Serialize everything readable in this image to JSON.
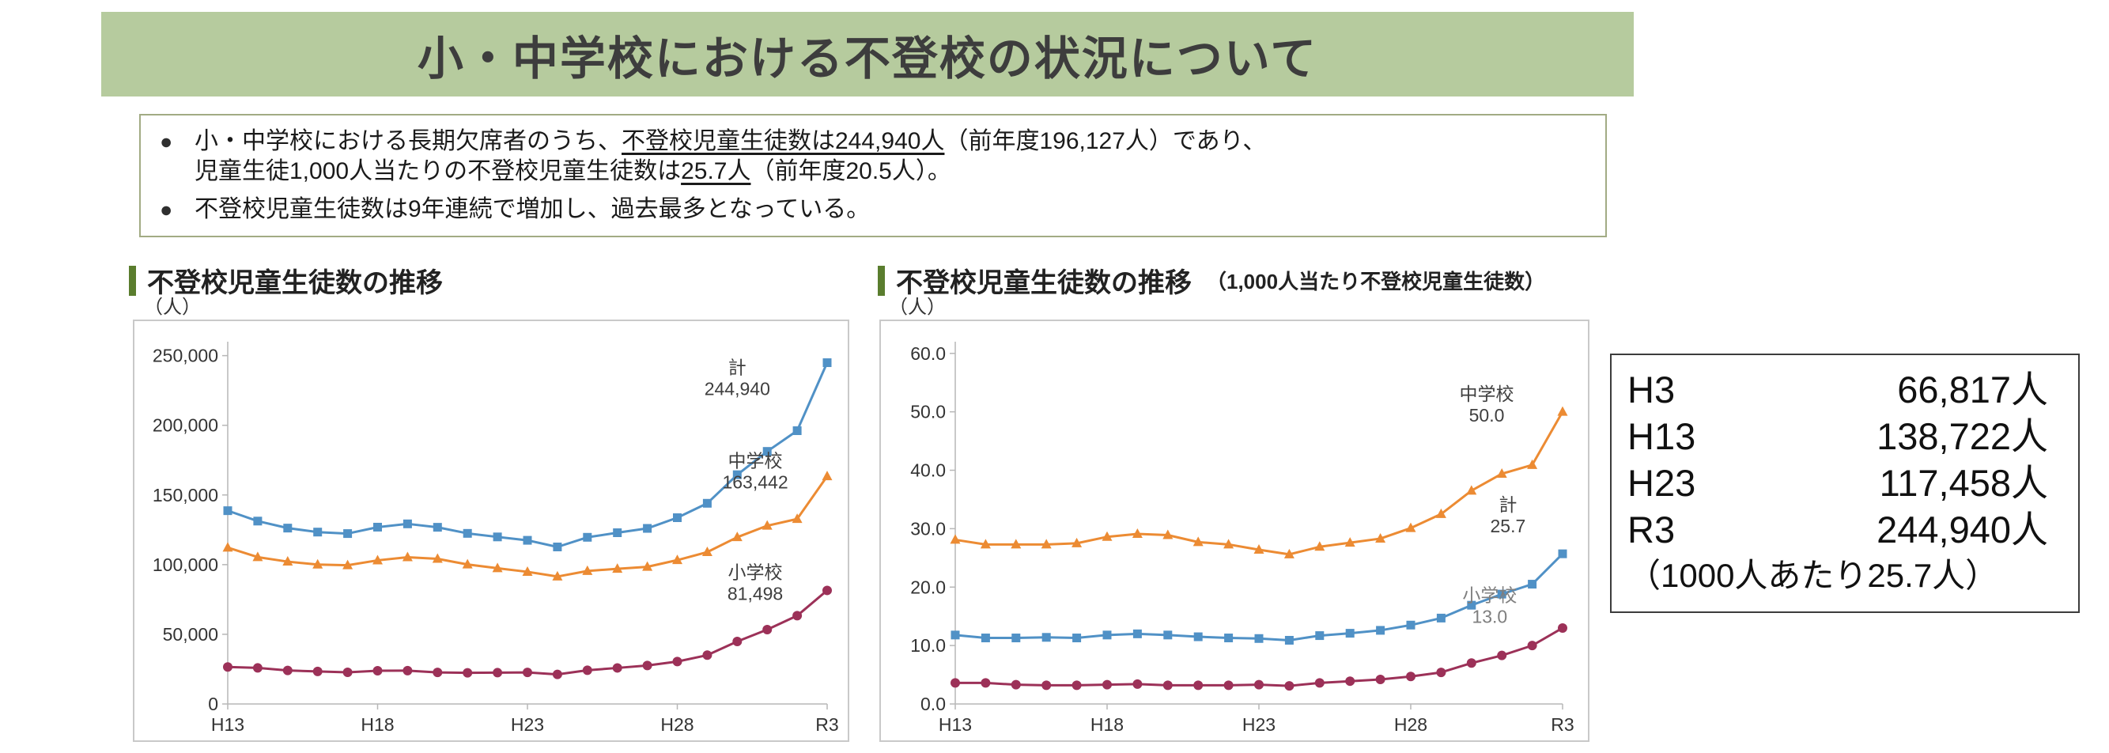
{
  "page": {
    "title": "小・中学校における不登校の状況について"
  },
  "summary": {
    "bullet_glyph": "●",
    "b1_l1_s1": "小・中学校における長期欠席者のうち、",
    "b1_l1_s2": "不登校児童生徒数は244,940人",
    "b1_l1_s3": "（前年度196,127人）であり、",
    "b1_l2_s1": "児童生徒1,000人当たりの不登校児童生徒数は",
    "b1_l2_s2": "25.7人",
    "b1_l2_s3": "（前年度20.5人）。",
    "b2": "不登校児童生徒数は9年連続で増加し、過去最多となっている。"
  },
  "left_chart": {
    "title": "不登校児童生徒数の推移",
    "unit": "（人）"
  },
  "right_chart": {
    "title": "不登校児童生徒数の推移",
    "subtitle": "（1,000人当たり不登校児童生徒数）",
    "unit": "（人）"
  },
  "stats_box": {
    "rows": [
      {
        "label": "H3",
        "value": "66,817人"
      },
      {
        "label": "H13",
        "value": "138,722人"
      },
      {
        "label": "H23",
        "value": "117,458人"
      },
      {
        "label": "R3",
        "value": "244,940人"
      }
    ],
    "note": "（1000人あたり25.7人）"
  },
  "colors": {
    "total": "#5091C6",
    "junior_high": "#EC8B33",
    "elementary": "#9C3158",
    "header_green": "#b6cb9e",
    "section_bar_green": "#5a7d2e"
  },
  "chart_data": [
    {
      "type": "line",
      "title": "不登校児童生徒数の推移",
      "xlabel": "",
      "ylabel": "（人）",
      "ylim": [
        0,
        260000
      ],
      "grid": false,
      "legend_position": "inline-annotations",
      "categories": [
        "H13",
        "H14",
        "H15",
        "H16",
        "H17",
        "H18",
        "H19",
        "H20",
        "H21",
        "H22",
        "H23",
        "H24",
        "H25",
        "H26",
        "H27",
        "H28",
        "H29",
        "H30",
        "R1",
        "R2",
        "R3"
      ],
      "yticks": [
        {
          "v": 0,
          "label": "0"
        },
        {
          "v": 50000,
          "label": "50,000"
        },
        {
          "v": 100000,
          "label": "100,000"
        },
        {
          "v": 150000,
          "label": "150,000"
        },
        {
          "v": 200000,
          "label": "200,000"
        },
        {
          "v": 250000,
          "label": "250,000"
        }
      ],
      "xticks": [
        {
          "i": 0,
          "label": "H13"
        },
        {
          "i": 5,
          "label": "H18"
        },
        {
          "i": 10,
          "label": "H23"
        },
        {
          "i": 15,
          "label": "H28"
        },
        {
          "i": 20,
          "label": "R3"
        }
      ],
      "series": [
        {
          "name": "計",
          "color": "#5091C6",
          "marker": "square",
          "values": [
            138722,
            131252,
            126226,
            123358,
            122287,
            126894,
            129255,
            126805,
            122432,
            119891,
            117458,
            112689,
            119617,
            122897,
            126009,
            133683,
            144031,
            164528,
            181272,
            196127,
            244940
          ]
        },
        {
          "name": "中学校",
          "color": "#EC8B33",
          "marker": "triangle",
          "values": [
            112211,
            105383,
            102149,
            100040,
            99578,
            103069,
            105328,
            104153,
            100105,
            97428,
            94836,
            91446,
            95442,
            97033,
            98426,
            103235,
            108999,
            119687,
            127922,
            132777,
            163442
          ]
        },
        {
          "name": "小学校",
          "color": "#9C3158",
          "marker": "circle",
          "values": [
            26511,
            25869,
            24077,
            23318,
            22709,
            23825,
            23927,
            22652,
            22327,
            22463,
            22622,
            21243,
            24175,
            25864,
            27583,
            30448,
            35032,
            44841,
            53350,
            63350,
            81498
          ]
        }
      ],
      "annotations": [
        {
          "lines": [
            "計",
            "244,940"
          ],
          "i": 17,
          "v": 237000,
          "color": "#3f3f3f"
        },
        {
          "lines": [
            "中学校",
            "163,442"
          ],
          "i": 17.6,
          "v": 170000,
          "color": "#3f3f3f"
        },
        {
          "lines": [
            "小学校",
            "81,498"
          ],
          "i": 17.6,
          "v": 90000,
          "color": "#3f3f3f"
        }
      ]
    },
    {
      "type": "line",
      "title": "不登校児童生徒数の推移（1,000人当たり不登校児童生徒数）",
      "xlabel": "",
      "ylabel": "（人）",
      "ylim": [
        0,
        62
      ],
      "grid": false,
      "legend_position": "inline-annotations",
      "categories": [
        "H13",
        "H14",
        "H15",
        "H16",
        "H17",
        "H18",
        "H19",
        "H20",
        "H21",
        "H22",
        "H23",
        "H24",
        "H25",
        "H26",
        "H27",
        "H28",
        "H29",
        "H30",
        "R1",
        "R2",
        "R3"
      ],
      "yticks": [
        {
          "v": 0,
          "label": "0.0"
        },
        {
          "v": 10,
          "label": "10.0"
        },
        {
          "v": 20,
          "label": "20.0"
        },
        {
          "v": 30,
          "label": "30.0"
        },
        {
          "v": 40,
          "label": "40.0"
        },
        {
          "v": 50,
          "label": "50.0"
        },
        {
          "v": 60,
          "label": "60.0"
        }
      ],
      "xticks": [
        {
          "i": 0,
          "label": "H13"
        },
        {
          "i": 5,
          "label": "H18"
        },
        {
          "i": 10,
          "label": "H23"
        },
        {
          "i": 15,
          "label": "H28"
        },
        {
          "i": 20,
          "label": "R3"
        }
      ],
      "series": [
        {
          "name": "計",
          "color": "#5091C6",
          "marker": "square",
          "values": [
            11.8,
            11.3,
            11.3,
            11.4,
            11.3,
            11.8,
            12.0,
            11.8,
            11.5,
            11.3,
            11.2,
            10.9,
            11.7,
            12.1,
            12.6,
            13.5,
            14.7,
            16.9,
            18.8,
            20.5,
            25.7
          ]
        },
        {
          "name": "中学校",
          "color": "#EC8B33",
          "marker": "triangle",
          "values": [
            28.1,
            27.3,
            27.3,
            27.3,
            27.5,
            28.6,
            29.1,
            28.9,
            27.7,
            27.3,
            26.4,
            25.6,
            26.9,
            27.6,
            28.3,
            30.1,
            32.5,
            36.5,
            39.4,
            40.9,
            50.0
          ]
        },
        {
          "name": "小学校",
          "color": "#9C3158",
          "marker": "circle",
          "values": [
            3.6,
            3.6,
            3.3,
            3.2,
            3.2,
            3.3,
            3.4,
            3.2,
            3.2,
            3.2,
            3.3,
            3.1,
            3.6,
            3.9,
            4.2,
            4.7,
            5.4,
            7.0,
            8.3,
            10.0,
            13.0
          ]
        }
      ],
      "annotations": [
        {
          "lines": [
            "中学校",
            "50.0"
          ],
          "i": 17.5,
          "v": 52,
          "color": "#3f3f3f"
        },
        {
          "lines": [
            "計",
            "25.7"
          ],
          "i": 18.2,
          "v": 33,
          "color": "#3f3f3f"
        },
        {
          "lines": [
            "小学校",
            "13.0"
          ],
          "i": 17.6,
          "v": 17.5,
          "color": "#7f7f7f"
        }
      ]
    }
  ]
}
